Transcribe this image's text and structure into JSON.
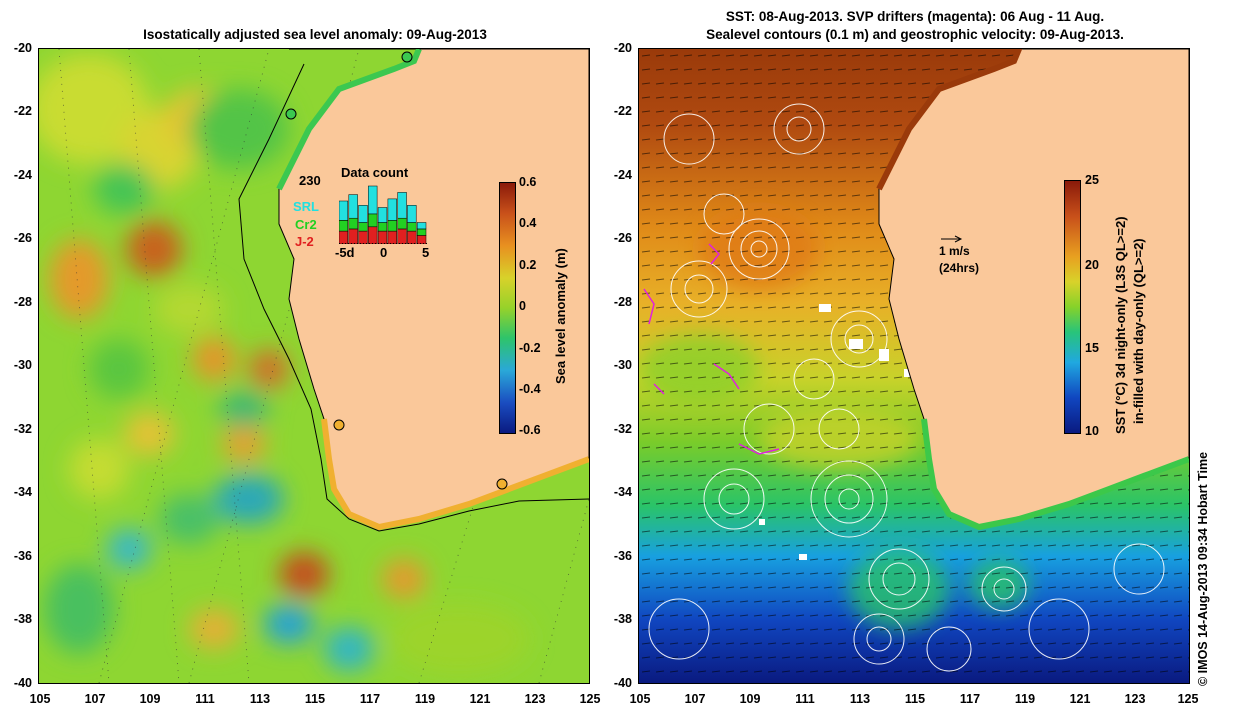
{
  "left": {
    "title": "Isostatically adjusted sea level anomaly: 09-Aug-2013",
    "colorbar_label": "Sea level anomaly (m)",
    "colorbar_ticks": [
      "0.6",
      "0.4",
      "0.2",
      "0",
      "-0.2",
      "-0.4",
      "-0.6"
    ],
    "inset": {
      "title": "Data count",
      "count": "230",
      "legend": [
        {
          "label": "SRL",
          "color": "#22e0e0"
        },
        {
          "label": "Cr2",
          "color": "#22d022"
        },
        {
          "label": "J-2",
          "color": "#e02020"
        }
      ],
      "x_ticks": [
        "-5d",
        "0",
        "5"
      ],
      "bars": [
        {
          "srl": 0.9,
          "cr2": 0.5,
          "j2": 0.6
        },
        {
          "srl": 1.1,
          "cr2": 0.5,
          "j2": 0.7
        },
        {
          "srl": 0.8,
          "cr2": 0.4,
          "j2": 0.6
        },
        {
          "srl": 1.3,
          "cr2": 0.6,
          "j2": 0.8
        },
        {
          "srl": 0.7,
          "cr2": 0.4,
          "j2": 0.6
        },
        {
          "srl": 1.0,
          "cr2": 0.5,
          "j2": 0.6
        },
        {
          "srl": 1.2,
          "cr2": 0.5,
          "j2": 0.7
        },
        {
          "srl": 0.8,
          "cr2": 0.4,
          "j2": 0.6
        },
        {
          "srl": 0.3,
          "cr2": 0.3,
          "j2": 0.4
        }
      ]
    }
  },
  "right": {
    "title_line1": "SST: 08-Aug-2013. SVP drifters (magenta): 06 Aug - 11 Aug.",
    "title_line2": "Sealevel contours (0.1 m) and geostrophic velocity: 09-Aug-2013.",
    "colorbar_label_line1": "SST (°C) 3d night-only (L3S QL>=2)",
    "colorbar_label_line2": "in-filled with day-only (QL>=2)",
    "colorbar_ticks": [
      "25",
      "20",
      "15",
      "10"
    ],
    "scale_label": "1 m/s",
    "scale_sub": "(24hrs)"
  },
  "y_ticks": [
    "-20",
    "-22",
    "-24",
    "-26",
    "-28",
    "-30",
    "-32",
    "-34",
    "-36",
    "-38",
    "-40"
  ],
  "x_ticks": [
    "105",
    "107",
    "109",
    "111",
    "113",
    "115",
    "117",
    "119",
    "121",
    "123",
    "125"
  ],
  "credit": "© IMOS 14-Aug-2013 09:34 Hobart Time",
  "colors": {
    "land": "#fac89a"
  }
}
